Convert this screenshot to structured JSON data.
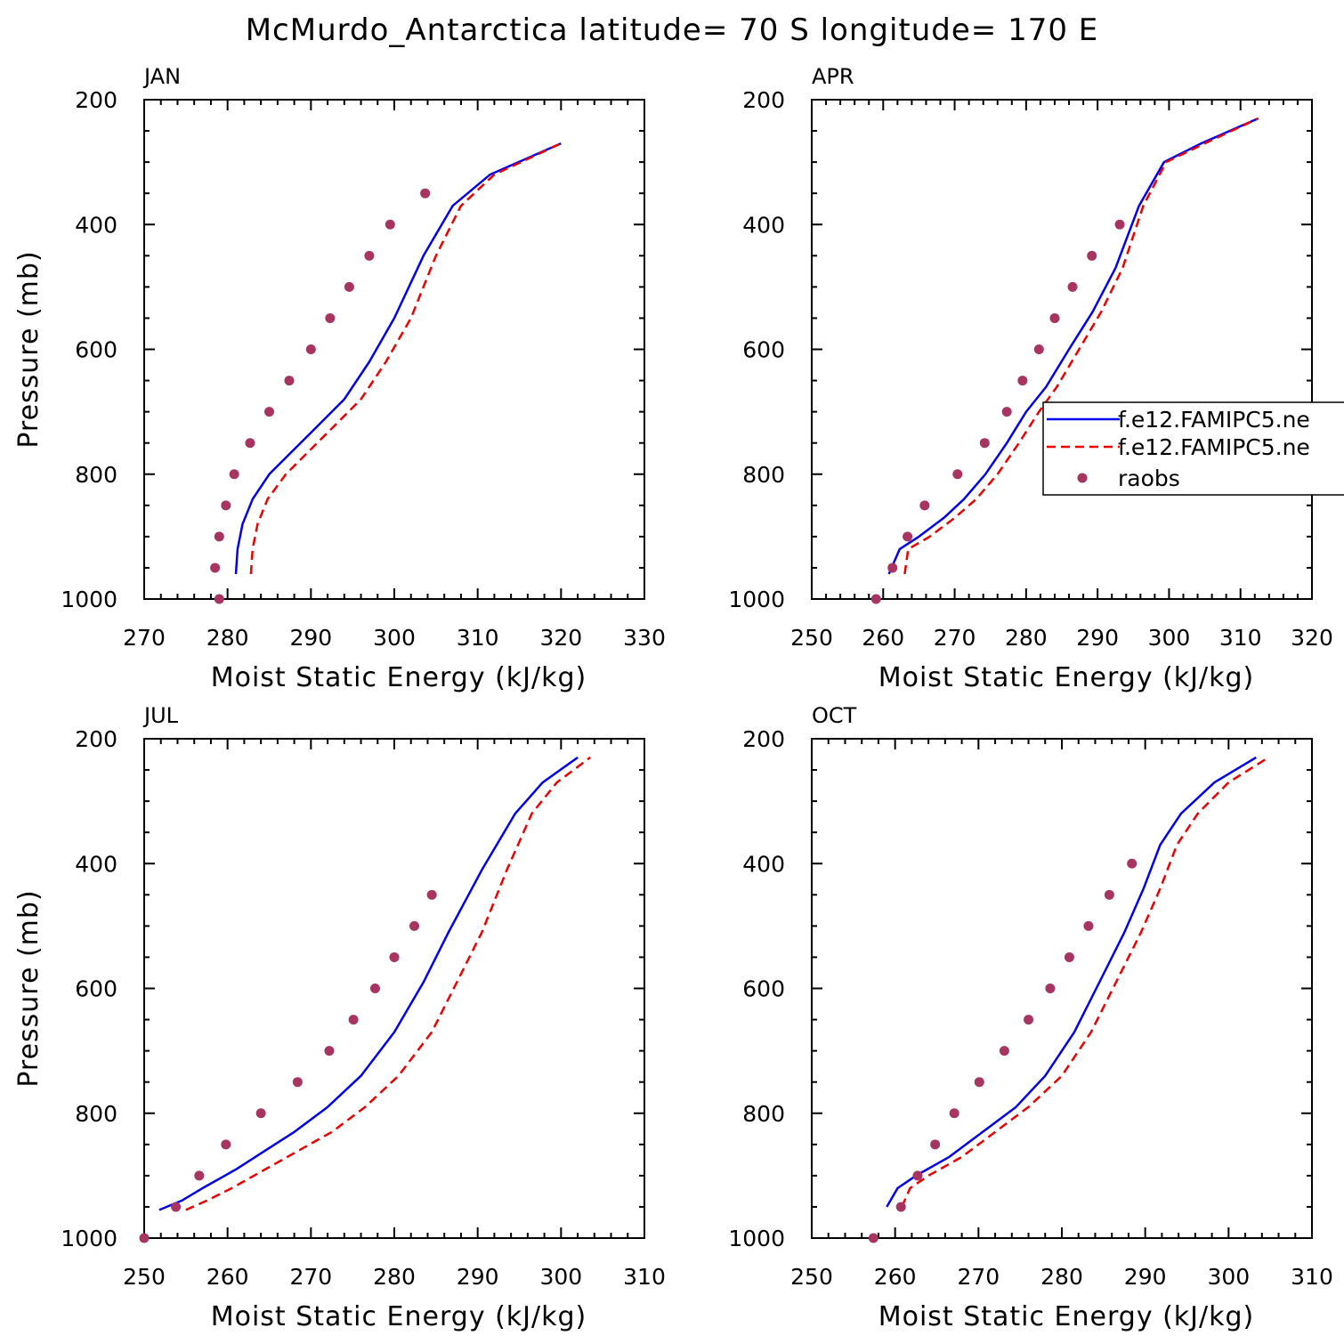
{
  "title": "McMurdo_Antarctica  latitude= 70 S longitude= 170 E",
  "colors": {
    "blue": "#0000ee",
    "red": "#ee0000",
    "marker": "#a83462",
    "axis": "#000000"
  },
  "legend": {
    "entries": [
      {
        "label": "f.e12.FAMIPC5.ne",
        "style": "solid",
        "color": "#0000ee"
      },
      {
        "label": "f.e12.FAMIPC5.ne",
        "style": "dashed",
        "color": "#ee0000"
      },
      {
        "label": "raobs",
        "style": "marker",
        "color": "#a83462"
      }
    ]
  },
  "chart_data": [
    {
      "type": "line",
      "panel": "JAN",
      "xlabel": "Moist Static Energy (kJ/kg)",
      "ylabel": "Pressure (mb)",
      "xlim": [
        270,
        330
      ],
      "ylim": [
        1000,
        200
      ],
      "xticks": [
        270,
        280,
        290,
        300,
        310,
        320,
        330
      ],
      "yticks": [
        200,
        400,
        600,
        800,
        1000
      ],
      "series": [
        {
          "style": "solid",
          "color": "#0000ee",
          "x": [
            281.0,
            281.2,
            281.8,
            283.0,
            285.0,
            288.0,
            291.0,
            294.0,
            297.0,
            300.0,
            303.5,
            307.0,
            311.5,
            320.0
          ],
          "p": [
            960,
            920,
            880,
            840,
            800,
            760,
            720,
            680,
            620,
            550,
            450,
            370,
            320,
            270
          ]
        },
        {
          "style": "dashed",
          "color": "#ee0000",
          "x": [
            282.8,
            283.0,
            283.6,
            284.8,
            287.0,
            290.0,
            293.0,
            296.0,
            299.0,
            302.0,
            305.0,
            308.0,
            312.0,
            320.0
          ],
          "p": [
            960,
            920,
            880,
            840,
            800,
            760,
            720,
            680,
            620,
            550,
            450,
            370,
            320,
            270
          ]
        },
        {
          "style": "marker",
          "color": "#a83462",
          "x": [
            279.0,
            278.5,
            279.0,
            279.8,
            280.8,
            282.7,
            285.0,
            287.4,
            290.0,
            292.3,
            294.6,
            297.0,
            299.5,
            303.7
          ],
          "p": [
            1000,
            950,
            900,
            850,
            800,
            750,
            700,
            650,
            600,
            550,
            500,
            450,
            400,
            350
          ]
        }
      ]
    },
    {
      "type": "line",
      "panel": "APR",
      "xlabel": "Moist Static Energy (kJ/kg)",
      "ylabel": "",
      "xlim": [
        250,
        320
      ],
      "ylim": [
        1000,
        200
      ],
      "xticks": [
        250,
        260,
        270,
        280,
        290,
        300,
        310,
        320
      ],
      "yticks": [
        200,
        400,
        600,
        800,
        1000
      ],
      "series": [
        {
          "style": "solid",
          "color": "#0000ee",
          "x": [
            260.8,
            262.3,
            265.0,
            268.5,
            271.3,
            274.3,
            277.3,
            280.0,
            282.8,
            286.0,
            289.3,
            292.5,
            295.8,
            299.3,
            304.5,
            312.5
          ],
          "p": [
            960,
            920,
            900,
            870,
            840,
            800,
            750,
            700,
            660,
            600,
            540,
            470,
            370,
            300,
            270,
            230
          ]
        },
        {
          "style": "dashed",
          "color": "#ee0000",
          "x": [
            263.0,
            263.5,
            266.5,
            270.0,
            273.0,
            276.0,
            279.0,
            281.8,
            284.3,
            287.4,
            290.5,
            293.5,
            296.4,
            299.6,
            305.0,
            312.5
          ],
          "p": [
            960,
            920,
            900,
            870,
            840,
            800,
            750,
            700,
            660,
            600,
            540,
            470,
            370,
            300,
            270,
            230
          ]
        },
        {
          "style": "marker",
          "color": "#a83462",
          "x": [
            259.0,
            261.3,
            263.4,
            265.8,
            270.4,
            274.2,
            277.3,
            279.5,
            281.8,
            284.0,
            286.5,
            289.2,
            293.1
          ],
          "p": [
            1000,
            950,
            900,
            850,
            800,
            750,
            700,
            650,
            600,
            550,
            500,
            450,
            400
          ]
        }
      ]
    },
    {
      "type": "line",
      "panel": "JUL",
      "xlabel": "Moist Static Energy (kJ/kg)",
      "ylabel": "Pressure (mb)",
      "xlim": [
        250,
        310
      ],
      "ylim": [
        1000,
        200
      ],
      "xticks": [
        250,
        260,
        270,
        280,
        290,
        300,
        310
      ],
      "yticks": [
        200,
        400,
        600,
        800,
        1000
      ],
      "series": [
        {
          "style": "solid",
          "color": "#0000ee",
          "x": [
            251.8,
            254.5,
            257.0,
            261.0,
            264.5,
            268.0,
            272.0,
            276.0,
            280.0,
            283.5,
            286.5,
            290.5,
            294.5,
            297.8,
            302.0
          ],
          "p": [
            955,
            940,
            920,
            890,
            860,
            830,
            790,
            740,
            670,
            590,
            510,
            410,
            320,
            270,
            230
          ]
        },
        {
          "style": "dashed",
          "color": "#ee0000",
          "x": [
            255.0,
            257.5,
            260.5,
            264.5,
            268.5,
            272.5,
            276.5,
            280.5,
            284.5,
            287.5,
            290.5,
            293.5,
            296.5,
            299.5,
            303.5
          ],
          "p": [
            955,
            940,
            920,
            890,
            860,
            830,
            790,
            740,
            670,
            590,
            510,
            410,
            320,
            270,
            230
          ]
        },
        {
          "style": "marker",
          "color": "#a83462",
          "x": [
            250.0,
            253.8,
            256.6,
            259.8,
            264.0,
            268.4,
            272.2,
            275.1,
            277.7,
            280.0,
            282.4,
            284.5
          ],
          "p": [
            1000,
            950,
            900,
            850,
            800,
            750,
            700,
            650,
            600,
            550,
            500,
            450
          ]
        }
      ]
    },
    {
      "type": "line",
      "panel": "OCT",
      "xlabel": "Moist Static Energy (kJ/kg)",
      "ylabel": "",
      "xlim": [
        250,
        310
      ],
      "ylim": [
        1000,
        200
      ],
      "xticks": [
        250,
        260,
        270,
        280,
        290,
        300,
        310
      ],
      "yticks": [
        200,
        400,
        600,
        800,
        1000
      ],
      "series": [
        {
          "style": "solid",
          "color": "#0000ee",
          "x": [
            259.0,
            260.3,
            262.5,
            266.5,
            270.5,
            274.5,
            278.0,
            281.5,
            284.5,
            287.5,
            289.8,
            291.8,
            294.3,
            298.3,
            303.3
          ],
          "p": [
            950,
            920,
            900,
            870,
            830,
            790,
            740,
            670,
            590,
            510,
            440,
            370,
            320,
            270,
            230
          ]
        },
        {
          "style": "dashed",
          "color": "#ee0000",
          "x": [
            260.8,
            261.8,
            264.0,
            268.0,
            272.0,
            276.0,
            280.0,
            283.5,
            286.5,
            289.5,
            291.8,
            293.8,
            296.3,
            300.0,
            304.8
          ],
          "p": [
            950,
            920,
            900,
            870,
            830,
            790,
            740,
            670,
            590,
            510,
            440,
            370,
            320,
            270,
            230
          ]
        },
        {
          "style": "marker",
          "color": "#a83462",
          "x": [
            257.4,
            260.7,
            262.7,
            264.8,
            267.1,
            270.1,
            273.1,
            276.0,
            278.6,
            280.9,
            283.2,
            285.7,
            288.4
          ],
          "p": [
            1000,
            950,
            900,
            850,
            800,
            750,
            700,
            650,
            600,
            550,
            500,
            450,
            400
          ]
        }
      ]
    }
  ]
}
